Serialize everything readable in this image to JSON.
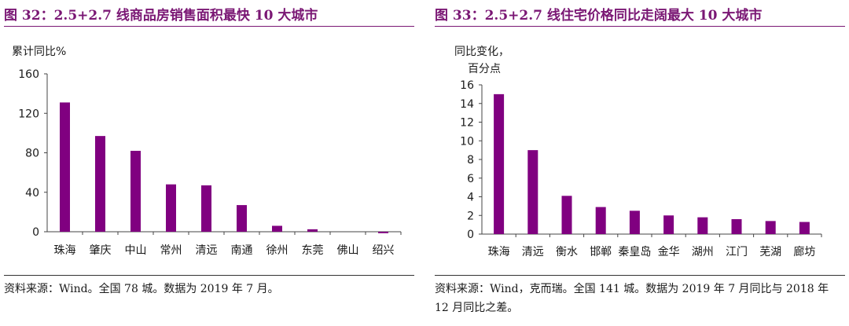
{
  "chart_data": [
    {
      "type": "bar",
      "figure_title": "图 32：2.5+2.7 线商品房销售面积最快 10 大城市",
      "ylabel": "累计同比%",
      "ylabel_lines": [
        "累计同比%"
      ],
      "ylim": [
        0,
        160
      ],
      "yticks": [
        0,
        40,
        80,
        120,
        160
      ],
      "categories": [
        "珠海",
        "肇庆",
        "中山",
        "常州",
        "清远",
        "南通",
        "徐州",
        "东莞",
        "佛山",
        "绍兴"
      ],
      "values": [
        131,
        97,
        82,
        48,
        47,
        27,
        6,
        2.5,
        0,
        -1.5
      ],
      "bar_color": "#800080",
      "source": "资料来源：Wind。全国 78 城。数据为 2019 年 7 月。"
    },
    {
      "type": "bar",
      "figure_title": "图 33：2.5+2.7 线住宅价格同比走阔最大 10 大城市",
      "ylabel": "同比变化，百分点",
      "ylabel_lines": [
        "同比变化，",
        "百分点"
      ],
      "ylim": [
        0,
        16
      ],
      "yticks": [
        0,
        2,
        4,
        6,
        8,
        10,
        12,
        14,
        16
      ],
      "categories": [
        "珠海",
        "清远",
        "衡水",
        "邯郸",
        "秦皇岛",
        "金华",
        "湖州",
        "江门",
        "芜湖",
        "廊坊"
      ],
      "values": [
        15,
        9,
        4.1,
        2.9,
        2.5,
        2.0,
        1.8,
        1.6,
        1.4,
        1.3
      ],
      "bar_color": "#800080",
      "source": "资料来源：Wind，克而瑞。全国 141 城。数据为 2019 年 7 月同比与 2018 年 12 月同比之差。"
    }
  ],
  "colors": {
    "accent": "#7a1774",
    "bar": "#800080"
  }
}
